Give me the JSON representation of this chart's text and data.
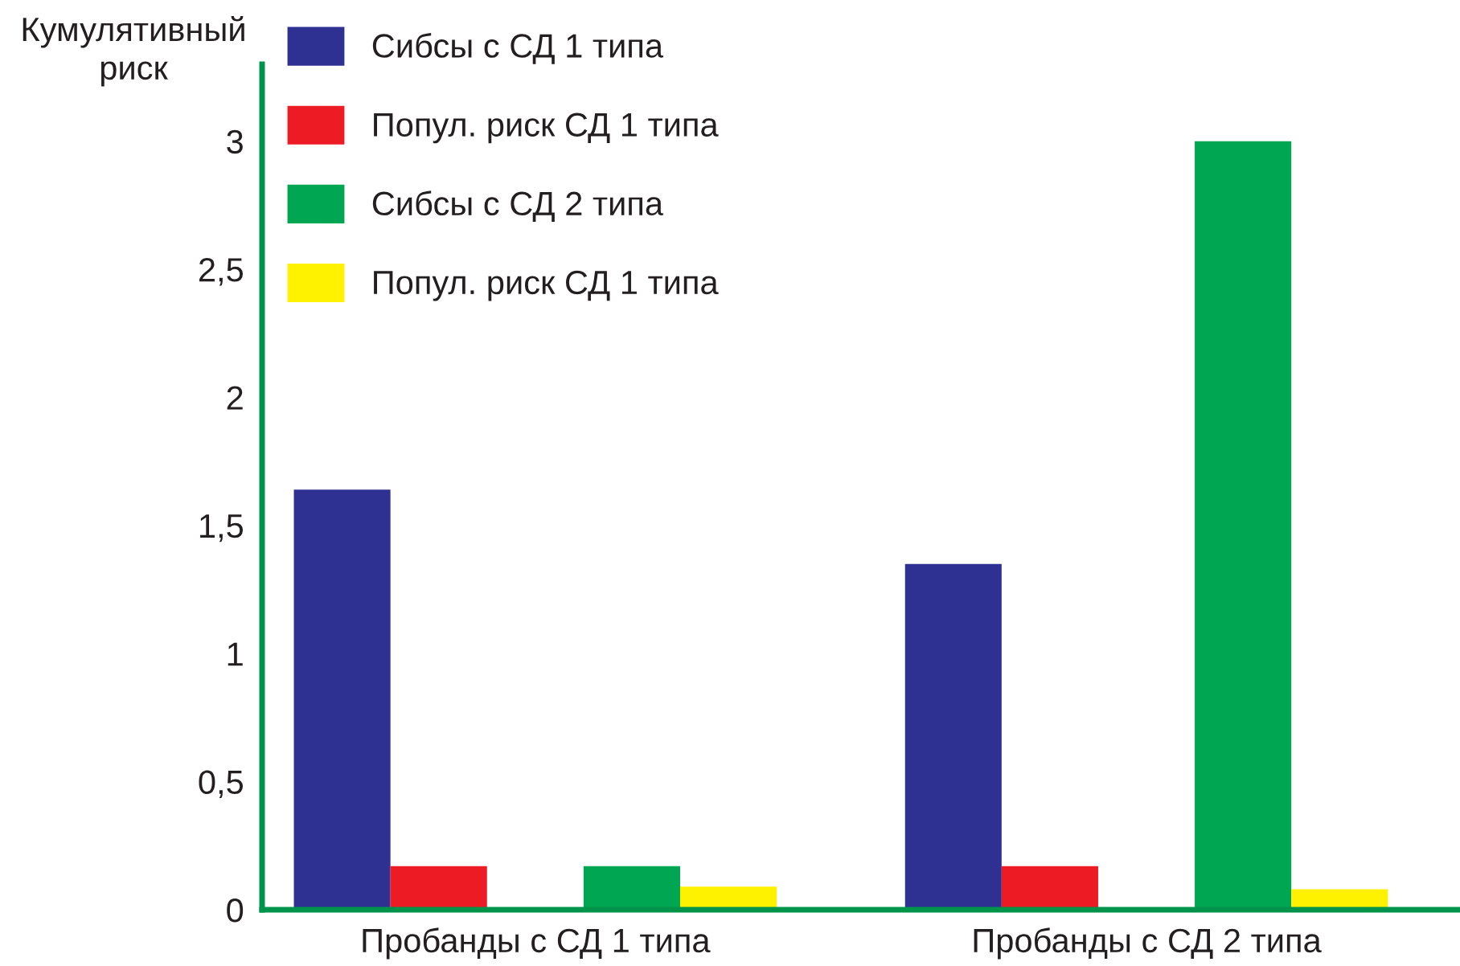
{
  "chart_data": {
    "type": "bar",
    "ylabel": "Кумулятивный\nриск",
    "categories": [
      "Пробанды с СД 1 типа",
      "Пробанды с СД 2 типа"
    ],
    "series": [
      {
        "name": "Сибсы с СД 1 типа",
        "color": "#2e3192",
        "values": [
          1.64,
          1.35
        ]
      },
      {
        "name": "Попул. риск СД 1 типа",
        "color": "#ed1c24",
        "values": [
          0.17,
          0.17
        ]
      },
      {
        "name": "Сибсы с СД 2 типа",
        "color": "#00a651",
        "values": [
          0.17,
          3.0
        ]
      },
      {
        "name": "Попул. риск СД 1 типа",
        "color": "#fff200",
        "values": [
          0.09,
          0.08
        ]
      }
    ],
    "ylim": [
      0,
      3.3
    ],
    "yticks": [
      {
        "value": 0,
        "label": "0"
      },
      {
        "value": 0.5,
        "label": "0,5"
      },
      {
        "value": 1,
        "label": "1"
      },
      {
        "value": 1.5,
        "label": "1,5"
      },
      {
        "value": 2,
        "label": "2"
      },
      {
        "value": 2.5,
        "label": "2,5"
      },
      {
        "value": 3,
        "label": "3"
      }
    ],
    "grid": false,
    "legend": "top left"
  }
}
